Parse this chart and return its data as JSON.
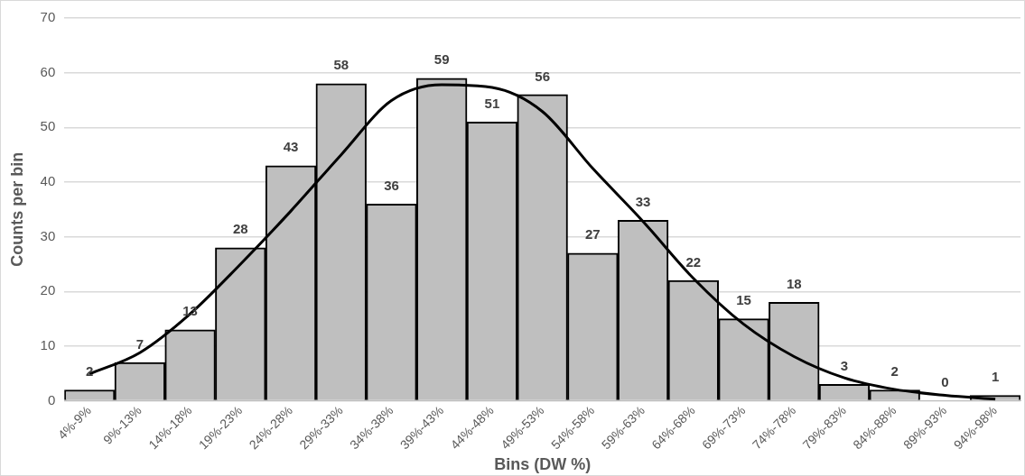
{
  "chart_data": {
    "type": "bar",
    "xlabel": "Bins (DW %)",
    "ylabel": "Counts per bin",
    "categories": [
      "4%-9%",
      "9%-13%",
      "14%-18%",
      "19%-23%",
      "24%-28%",
      "29%-33%",
      "34%-38%",
      "39%-43%",
      "44%-48%",
      "49%-53%",
      "54%-58%",
      "59%-63%",
      "64%-68%",
      "69%-73%",
      "74%-78%",
      "79%-83%",
      "84%-88%",
      "89%-93%",
      "94%-98%"
    ],
    "series": [
      {
        "color": "#bfbfbf",
        "values": [
          2,
          7,
          13,
          28,
          43,
          58,
          36,
          59,
          51,
          56,
          27,
          33,
          22,
          15,
          18,
          3,
          2,
          0,
          1
        ],
        "value_labels": [
          "2",
          "7",
          "13",
          "28",
          "43",
          "58",
          "36",
          "59",
          "51",
          "56",
          "27",
          "33",
          "22",
          "15",
          "18",
          "3",
          "2",
          "0",
          "1"
        ]
      },
      {
        "type": "line",
        "color": "#000000",
        "values": [
          4.9,
          8.8,
          15.9,
          25,
          34.7,
          45,
          54.9,
          57.8,
          57.3,
          52.9,
          42.5,
          32.8,
          22.4,
          14,
          8.1,
          4.2,
          2.1,
          1,
          0.3
        ]
      }
    ],
    "ylim": [
      0,
      70
    ],
    "yticks": [
      0,
      10,
      20,
      30,
      40,
      50,
      60,
      70
    ],
    "grid": "y",
    "legend": false,
    "marker": "none"
  }
}
